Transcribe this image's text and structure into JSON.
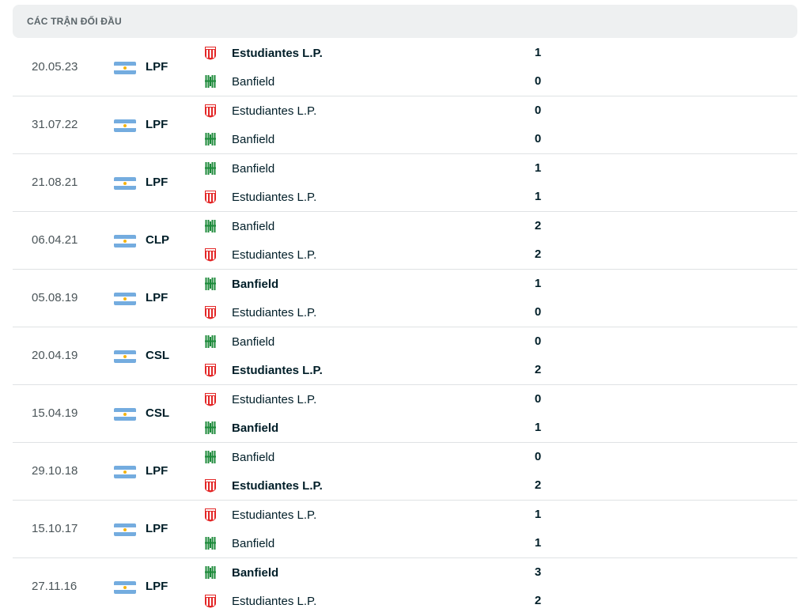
{
  "section": {
    "title": "CÁC TRẬN ĐỐI ĐẦU"
  },
  "colors": {
    "estudiantes": "#e32626",
    "banfield": "#1c8a3a",
    "flag_blue": "#74acdf",
    "flag_sun": "#f6b40e"
  },
  "matches": [
    {
      "date": "20.05.23",
      "league": "LPF",
      "home": {
        "name": "Estudiantes L.P.",
        "crest": "estudiantes-crest-icon",
        "score": "1",
        "winner": true
      },
      "away": {
        "name": "Banfield",
        "crest": "banfield-crest-icon",
        "score": "0",
        "winner": false
      }
    },
    {
      "date": "31.07.22",
      "league": "LPF",
      "home": {
        "name": "Estudiantes L.P.",
        "crest": "estudiantes-crest-icon",
        "score": "0",
        "winner": false
      },
      "away": {
        "name": "Banfield",
        "crest": "banfield-crest-icon",
        "score": "0",
        "winner": false
      }
    },
    {
      "date": "21.08.21",
      "league": "LPF",
      "home": {
        "name": "Banfield",
        "crest": "banfield-crest-icon",
        "score": "1",
        "winner": false
      },
      "away": {
        "name": "Estudiantes L.P.",
        "crest": "estudiantes-crest-icon",
        "score": "1",
        "winner": false
      }
    },
    {
      "date": "06.04.21",
      "league": "CLP",
      "home": {
        "name": "Banfield",
        "crest": "banfield-crest-icon",
        "score": "2",
        "winner": false
      },
      "away": {
        "name": "Estudiantes L.P.",
        "crest": "estudiantes-crest-icon",
        "score": "2",
        "winner": false
      }
    },
    {
      "date": "05.08.19",
      "league": "LPF",
      "home": {
        "name": "Banfield",
        "crest": "banfield-crest-icon",
        "score": "1",
        "winner": true
      },
      "away": {
        "name": "Estudiantes L.P.",
        "crest": "estudiantes-crest-icon",
        "score": "0",
        "winner": false
      }
    },
    {
      "date": "20.04.19",
      "league": "CSL",
      "home": {
        "name": "Banfield",
        "crest": "banfield-crest-icon",
        "score": "0",
        "winner": false
      },
      "away": {
        "name": "Estudiantes L.P.",
        "crest": "estudiantes-crest-icon",
        "score": "2",
        "winner": true
      }
    },
    {
      "date": "15.04.19",
      "league": "CSL",
      "home": {
        "name": "Estudiantes L.P.",
        "crest": "estudiantes-crest-icon",
        "score": "0",
        "winner": false
      },
      "away": {
        "name": "Banfield",
        "crest": "banfield-crest-icon",
        "score": "1",
        "winner": true
      }
    },
    {
      "date": "29.10.18",
      "league": "LPF",
      "home": {
        "name": "Banfield",
        "crest": "banfield-crest-icon",
        "score": "0",
        "winner": false
      },
      "away": {
        "name": "Estudiantes L.P.",
        "crest": "estudiantes-crest-icon",
        "score": "2",
        "winner": true
      }
    },
    {
      "date": "15.10.17",
      "league": "LPF",
      "home": {
        "name": "Estudiantes L.P.",
        "crest": "estudiantes-crest-icon",
        "score": "1",
        "winner": false
      },
      "away": {
        "name": "Banfield",
        "crest": "banfield-crest-icon",
        "score": "1",
        "winner": false
      }
    },
    {
      "date": "27.11.16",
      "league": "LPF",
      "home": {
        "name": "Banfield",
        "crest": "banfield-crest-icon",
        "score": "3",
        "winner": true
      },
      "away": {
        "name": "Estudiantes L.P.",
        "crest": "estudiantes-crest-icon",
        "score": "2",
        "winner": false
      }
    }
  ]
}
